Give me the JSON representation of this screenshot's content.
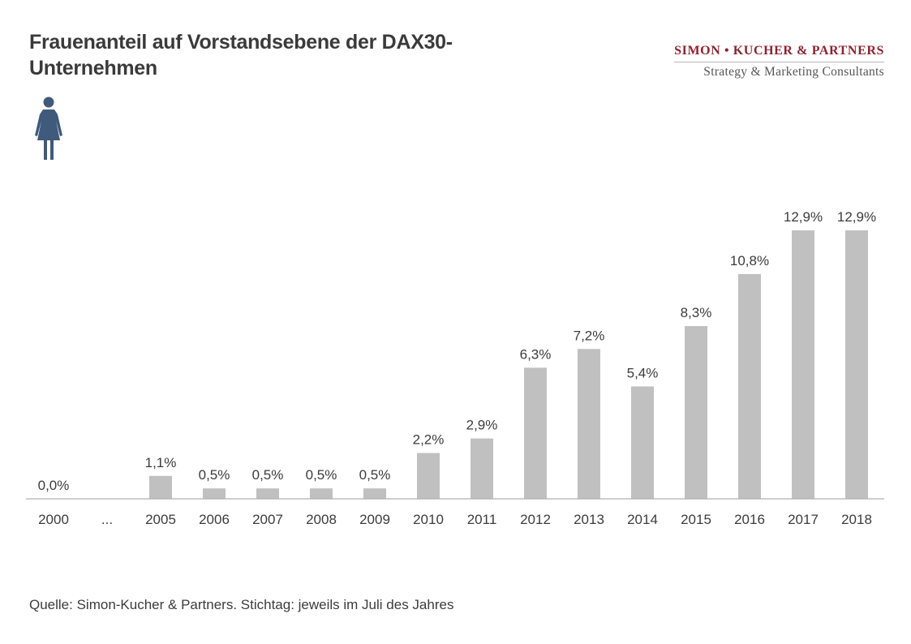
{
  "header": {
    "title": "Frauenanteil auf Vorstandsebene der DAX30-Unternehmen"
  },
  "brand": {
    "name": "SIMON • KUCHER & PARTNERS",
    "tagline": "Strategy & Marketing Consultants",
    "color": "#8a2332"
  },
  "icon": {
    "name": "woman-icon",
    "color": "#3f5a7a"
  },
  "footer": {
    "source": "Quelle: Simon-Kucher & Partners. Stichtag:  jeweils im Juli des Jahres"
  },
  "chart_data": {
    "type": "bar",
    "categories": [
      "2000",
      "...",
      "2005",
      "2006",
      "2007",
      "2008",
      "2009",
      "2010",
      "2011",
      "2012",
      "2013",
      "2014",
      "2015",
      "2016",
      "2017",
      "2018"
    ],
    "values": [
      0.0,
      null,
      1.1,
      0.5,
      0.5,
      0.5,
      0.5,
      2.2,
      2.9,
      6.3,
      7.2,
      5.4,
      8.3,
      10.8,
      12.9,
      12.9
    ],
    "data_labels": [
      "0,0%",
      "",
      "1,1%",
      "0,5%",
      "0,5%",
      "0,5%",
      "0,5%",
      "2,2%",
      "2,9%",
      "6,3%",
      "7,2%",
      "5,4%",
      "8,3%",
      "10,8%",
      "12,9%",
      "12,9%"
    ],
    "ylim": [
      0,
      13
    ],
    "bar_color": "#c0c0c0",
    "grid": false,
    "legend": "none"
  }
}
